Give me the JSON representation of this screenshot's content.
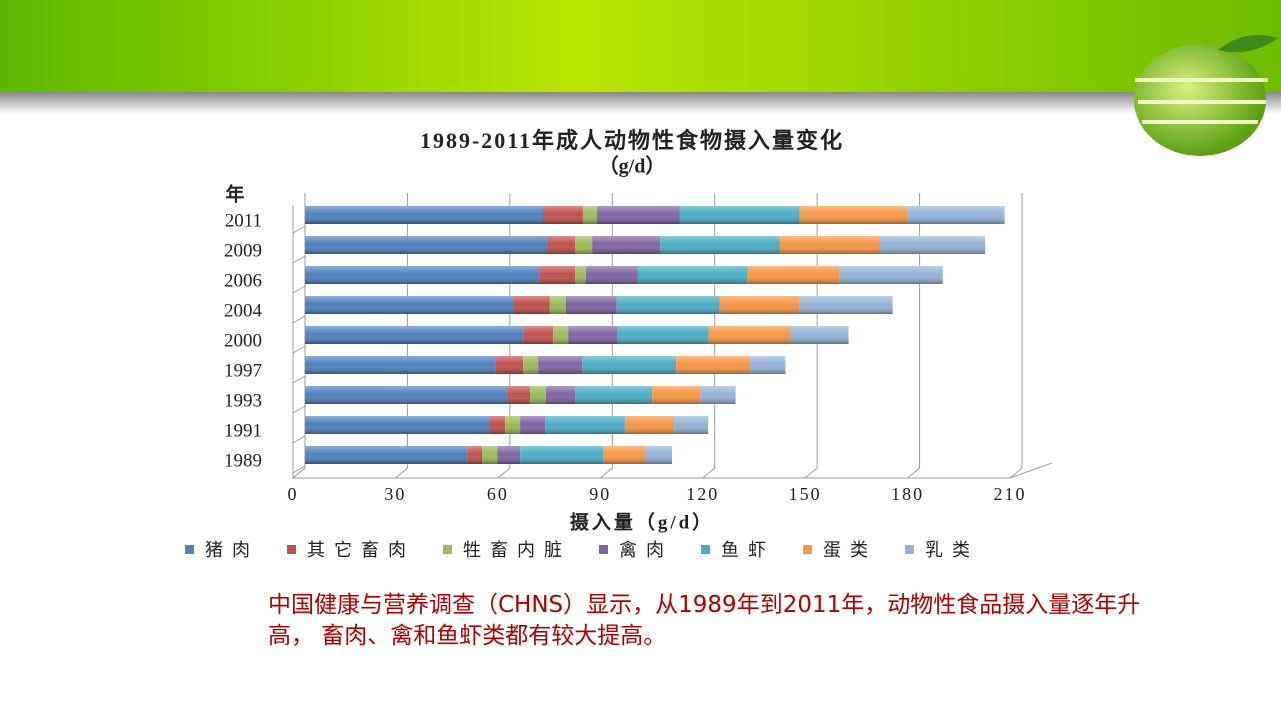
{
  "chart_data": {
    "type": "bar",
    "orientation": "horizontal",
    "stacked": true,
    "title": "1989-2011年成人动物性食物摄入量变化",
    "subtitle": "（g/d）",
    "y_label": "年",
    "x_label": "摄入量（g/d）",
    "categories": [
      "2011",
      "2009",
      "2006",
      "2004",
      "2000",
      "1997",
      "1993",
      "1991",
      "1989"
    ],
    "series": [
      {
        "name": "猪肉",
        "color": "#4f81bd",
        "values": [
          69.7,
          70.9,
          68.8,
          61.2,
          63.9,
          55.7,
          59.2,
          54.2,
          47.5
        ]
      },
      {
        "name": "其它畜肉",
        "color": "#c0504d",
        "values": [
          11.7,
          8.2,
          10.3,
          10.5,
          8.8,
          8.2,
          6.7,
          4.4,
          4.4
        ]
      },
      {
        "name": "牲畜内脏",
        "color": "#9bbb59",
        "values": [
          4.1,
          5.0,
          3.2,
          4.7,
          4.4,
          4.4,
          4.7,
          4.4,
          4.4
        ]
      },
      {
        "name": "禽肉",
        "color": "#8064a2",
        "values": [
          24.3,
          19.9,
          15.2,
          14.9,
          14.4,
          12.9,
          8.5,
          7.3,
          6.7
        ]
      },
      {
        "name": "鱼虾",
        "color": "#4bacc6",
        "values": [
          35.1,
          35.1,
          32.2,
          30.2,
          26.7,
          27.5,
          22.6,
          23.4,
          24.3
        ]
      },
      {
        "name": "蛋类",
        "color": "#f79646",
        "values": [
          31.6,
          29.3,
          26.9,
          23.4,
          24.0,
          21.7,
          14.1,
          14.4,
          12.3
        ]
      },
      {
        "name": "乳类",
        "color": "#95b3d7",
        "values": [
          28.4,
          30.8,
          30.2,
          27.2,
          17.0,
          10.3,
          10.3,
          10.0,
          7.9
        ]
      }
    ],
    "xlim": [
      0,
      210
    ],
    "xticks": [
      0,
      30,
      60,
      90,
      120,
      150,
      180,
      210
    ],
    "grid": true,
    "legend": "bottom"
  },
  "caption": "中国健康与营养调查（CHNS）显示，从1989年到2011年，动物性食品摄入量逐年升高， 畜肉、禽和鱼虾类都有较大提高。"
}
